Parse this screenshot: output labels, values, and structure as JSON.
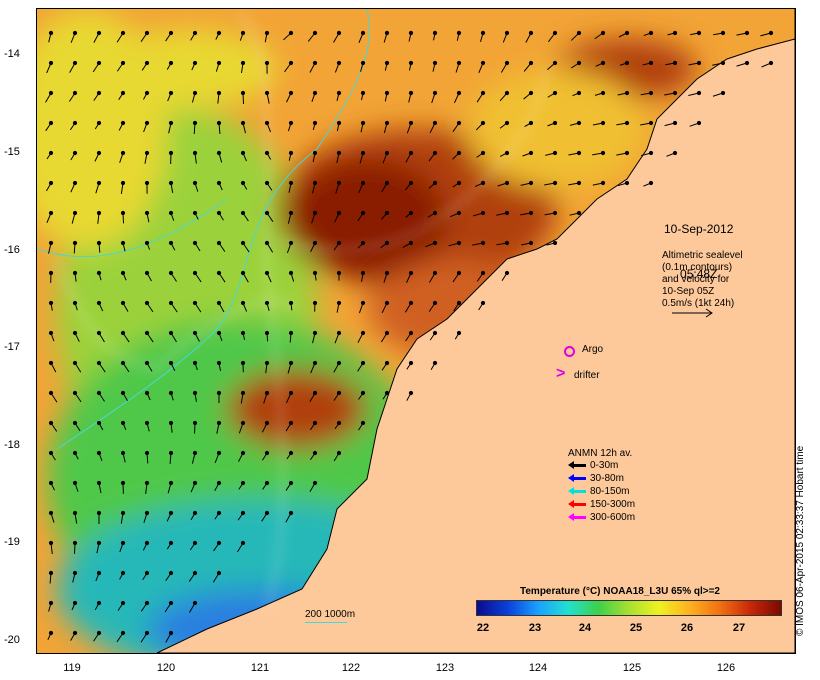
{
  "map": {
    "date_line1": "10-Sep-2012",
    "date_line2": "05:48Z",
    "altimetry_note": "Altimetric sealevel\n(0.1m contours)\nand velocity for\n10-Sep 05Z\n0.5m/s (1kt 24h)",
    "argo_label": "Argo",
    "drifter_label": "drifter",
    "scale_label": "200  1000m",
    "credit": "© IMOS 06-Apr-2015 02:33:37 Hobart time",
    "lat_ticks": [
      "-14",
      "-15",
      "-16",
      "-17",
      "-18",
      "-19",
      "-20"
    ],
    "lon_ticks": [
      "119",
      "120",
      "121",
      "122",
      "123",
      "124",
      "125",
      "126"
    ],
    "land_color": "#fdc99b"
  },
  "legend": {
    "title": "ANMN 12h av.",
    "items": [
      {
        "label": "0-30m",
        "color": "#000000"
      },
      {
        "label": "30-80m",
        "color": "#0000ff"
      },
      {
        "label": "80-150m",
        "color": "#00e0e0"
      },
      {
        "label": "150-300m",
        "color": "#ff0000"
      },
      {
        "label": "300-600m",
        "color": "#ff00ff"
      }
    ]
  },
  "colorbar": {
    "title": "Temperature (°C) NOAA18_L3U 65% ql>=2",
    "ticks": [
      "22",
      "23",
      "24",
      "25",
      "26",
      "27"
    ],
    "colors": [
      "#0b0b8f",
      "#0a3fd8",
      "#1aa0ff",
      "#22e0d0",
      "#3fd04a",
      "#a8e030",
      "#f0f020",
      "#ffb020",
      "#f07010",
      "#c82808",
      "#7a0a00"
    ]
  }
}
